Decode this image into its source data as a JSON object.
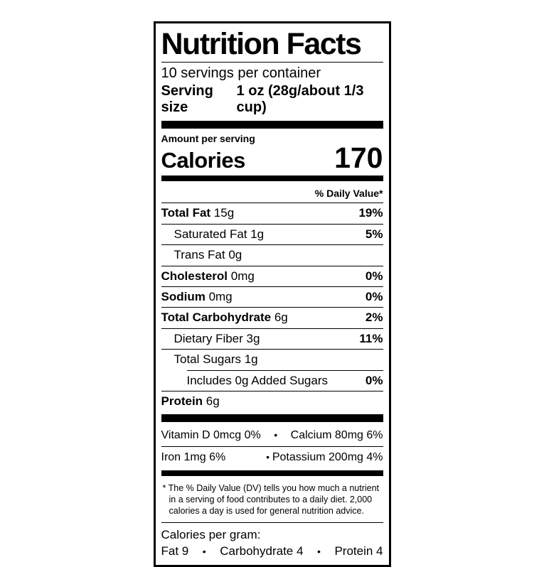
{
  "label": {
    "title": "Nutrition Facts",
    "servings_per_container": "10 servings per container",
    "serving_size_label": "Serving size",
    "serving_size_value": "1 oz (28g/about 1/3 cup)",
    "amount_per_serving": "Amount per serving",
    "calories_label": "Calories",
    "calories_value": "170",
    "daily_value_header": "% Daily Value*",
    "nutrients": [
      {
        "name": "Total Fat",
        "amount": "15g",
        "dv": "19%",
        "bold": true,
        "indent": 0
      },
      {
        "name": "Saturated Fat",
        "amount": "1g",
        "dv": "5%",
        "bold": false,
        "indent": 1
      },
      {
        "name": "Trans Fat",
        "amount": "0g",
        "dv": "",
        "bold": false,
        "indent": 1
      },
      {
        "name": "Cholesterol",
        "amount": "0mg",
        "dv": "0%",
        "bold": true,
        "indent": 0
      },
      {
        "name": "Sodium",
        "amount": "0mg",
        "dv": "0%",
        "bold": true,
        "indent": 0
      },
      {
        "name": "Total Carbohydrate",
        "amount": "6g",
        "dv": "2%",
        "bold": true,
        "indent": 0
      },
      {
        "name": "Dietary Fiber",
        "amount": "3g",
        "dv": "11%",
        "bold": false,
        "indent": 1
      },
      {
        "name": "Total Sugars",
        "amount": "1g",
        "dv": "",
        "bold": false,
        "indent": 1
      },
      {
        "name": "Includes 0g Added Sugars",
        "amount": "",
        "dv": "0%",
        "bold": false,
        "indent": 2
      },
      {
        "name": "Protein",
        "amount": "6g",
        "dv": "",
        "bold": true,
        "indent": 0
      }
    ],
    "micronutrients": [
      {
        "left": "Vitamin D 0mcg 0%",
        "separator": "•",
        "right": "Calcium 80mg 6%",
        "separator_position": "center"
      },
      {
        "left": "Iron 1mg 6%",
        "separator": "•",
        "right": "Potassium 200mg 4%",
        "separator_position": "right"
      }
    ],
    "footnote": "* The % Daily Value (DV) tells you how much a nutrient in a serving of food contributes to a daily diet. 2,000 calories a day is used for general nutrition advice.",
    "calories_per_gram": {
      "title": "Calories per gram:",
      "items": [
        "Fat 9",
        "Carbohydrate 4",
        "Protein 4"
      ],
      "separator": "•"
    },
    "colors": {
      "ink": "#000000",
      "background": "#ffffff"
    }
  }
}
